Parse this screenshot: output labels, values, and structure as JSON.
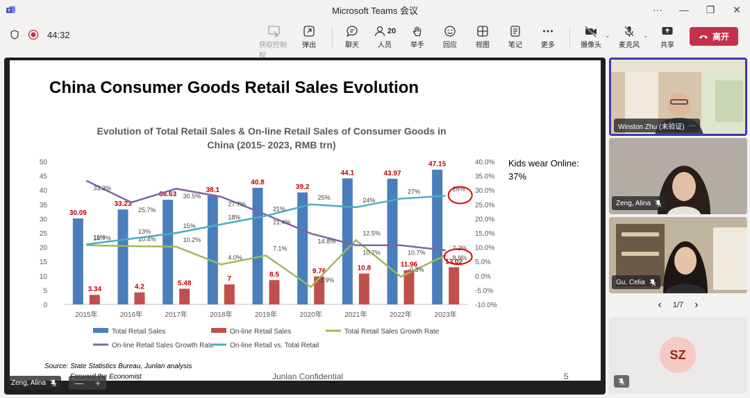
{
  "window": {
    "title": "Microsoft Teams 会议",
    "minimize": "—",
    "maximize": "❐",
    "close": "✕",
    "more": "···"
  },
  "toolbar": {
    "timer": "44:32",
    "items": [
      {
        "label": "获取控制权",
        "icon": "take-control-icon",
        "disabled": true
      },
      {
        "label": "弹出",
        "icon": "pop-out-icon"
      },
      {
        "label": "聊天",
        "icon": "chat-icon"
      },
      {
        "label": "人员",
        "icon": "people-icon",
        "count": "20"
      },
      {
        "label": "举手",
        "icon": "raise-hand-icon"
      },
      {
        "label": "回应",
        "icon": "react-icon"
      },
      {
        "label": "视图",
        "icon": "view-icon"
      },
      {
        "label": "笔记",
        "icon": "notes-icon"
      },
      {
        "label": "更多",
        "icon": "more-icon"
      },
      {
        "label": "摄像头",
        "icon": "camera-off-icon"
      },
      {
        "label": "麦克风",
        "icon": "mic-off-icon"
      },
      {
        "label": "共享",
        "icon": "share-icon"
      }
    ],
    "leave_label": "离开",
    "leave_color": "#c4314b"
  },
  "slide": {
    "title": "China Consumer Goods Retail Sales Evolution",
    "side_note": "Kids wear Online:\n37%",
    "source": "Source: State Statistics Bureau, Junlan analysis",
    "source2": "Forward the Economist",
    "confidential": "Junlan Confidential",
    "page_number": "5",
    "presenter_tag": "Zeng, Alina",
    "zoom_minus": "—",
    "zoom_plus": "+"
  },
  "chart_data": {
    "type": "bar",
    "title": "Evolution of Total Retail Sales & On-line Retail Sales of Consumer Goods in China             (2015- 2023, RMB trn)",
    "title_line1": "Evolution of Total Retail Sales & On-line Retail Sales of Consumer Goods in",
    "title_line2": "China              (2015- 2023, RMB trn)",
    "categories": [
      "2015年",
      "2016年",
      "2017年",
      "2018年",
      "2019年",
      "2020年",
      "2021年",
      "2022年",
      "2023年"
    ],
    "ylim": [
      0,
      50
    ],
    "y_ticks": [
      "0",
      "5",
      "10",
      "15",
      "20",
      "25",
      "30",
      "35",
      "40",
      "45",
      "50"
    ],
    "y2lim": [
      -10,
      40
    ],
    "y2_ticks": [
      "-10.0%",
      "-5.0%",
      "0.0%",
      "5.0%",
      "10.0%",
      "15.0%",
      "20.0%",
      "25.0%",
      "30.0%",
      "35.0%",
      "40.0%"
    ],
    "series": [
      {
        "name": "Total Retail Sales",
        "kind": "bar",
        "color": "#4a7ebb",
        "values": [
          30.09,
          33.23,
          36.63,
          38.1,
          40.8,
          39.2,
          44.1,
          43.97,
          47.15
        ],
        "labels": [
          "30.09",
          "33.23",
          "36.63",
          "38.1",
          "40.8",
          "39.2",
          "44.1",
          "43.97",
          "47.15"
        ]
      },
      {
        "name": "On-line Retail Sales",
        "kind": "bar",
        "color": "#c0504d",
        "values": [
          3.34,
          4.2,
          5.48,
          7,
          8.5,
          9.76,
          10.8,
          11.96,
          13.02
        ],
        "labels": [
          "3.34",
          "4.2",
          "5.48",
          "7",
          "8.5",
          "9.76",
          "10.8",
          "11.96",
          "13.02"
        ]
      },
      {
        "name": "Total Retail Sales Growth Rate",
        "kind": "line",
        "axis": "right",
        "color": "#9bbb59",
        "values": [
          10.7,
          10.4,
          10.2,
          4.0,
          7.1,
          -3.9,
          12.5,
          -0.3,
          7.2
        ],
        "labels": [
          "10.7%",
          "10.4%",
          "10.2%",
          "4.0%",
          "7.1%",
          "-3.9%",
          "12.5%",
          "-0.3%",
          "7.2%"
        ]
      },
      {
        "name": "On-line Retail Sales Growth Rate",
        "kind": "line",
        "axis": "right",
        "color": "#8064a2",
        "values": [
          33.3,
          25.7,
          30.5,
          27.7,
          21.4,
          14.8,
          10.7,
          10.7,
          8.9
        ],
        "labels": [
          "33.3%",
          "25.7%",
          "30.5%",
          "27.7%",
          "21.4%",
          "14.8%",
          "10.7%",
          "10.7%",
          "8.9%"
        ]
      },
      {
        "name": "On-line Retail vs. Total Retail",
        "kind": "line",
        "axis": "right",
        "color": "#4bacc6",
        "values": [
          11,
          13,
          15,
          18,
          21,
          25,
          24,
          27,
          28
        ],
        "labels": [
          "11%",
          "13%",
          "15%",
          "18%",
          "21%",
          "25%",
          "24%",
          "27%",
          "28%"
        ]
      }
    ],
    "legend_position": "bottom",
    "annotations": [
      "28% circled",
      "13.02 / 7.2% circled"
    ]
  },
  "participants": [
    {
      "name": "Winston Zhu (未验证)",
      "more": "···",
      "active": true
    },
    {
      "name": "Zeng, Alina",
      "muted": true
    },
    {
      "name": "Gu, Celia",
      "muted": true
    }
  ],
  "pager": {
    "text": "1/7",
    "prev": "‹",
    "next": "›"
  },
  "self_tile": {
    "initials": "SZ"
  }
}
